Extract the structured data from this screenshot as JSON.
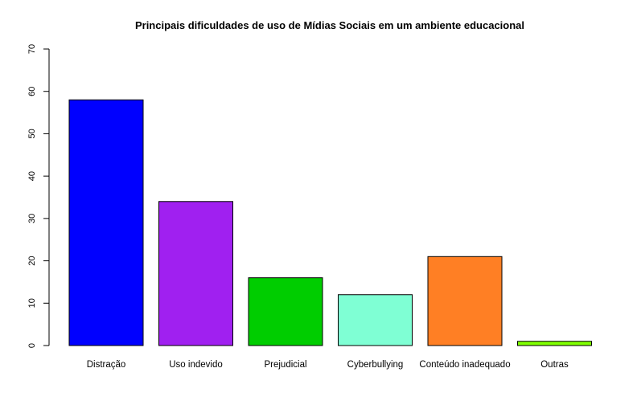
{
  "chart_data": {
    "type": "bar",
    "title": "Principais dificuldades de uso de Mídias Sociais em um ambiente educacional",
    "xlabel": "",
    "ylabel": "",
    "categories": [
      "Distração",
      "Uso indevido",
      "Prejudicial",
      "Cyberbullying",
      "Conteúdo inadequado",
      "Outras"
    ],
    "values": [
      58,
      34,
      16,
      12,
      21,
      1
    ],
    "colors": [
      "#0000ff",
      "#a020f0",
      "#00cd00",
      "#7fffd4",
      "#ff7f24",
      "#7fff00"
    ],
    "ylim": [
      0,
      70
    ],
    "yticks": [
      "0",
      "10",
      "20",
      "30",
      "40",
      "50",
      "60",
      "70"
    ],
    "grid": false,
    "legend": "none"
  }
}
